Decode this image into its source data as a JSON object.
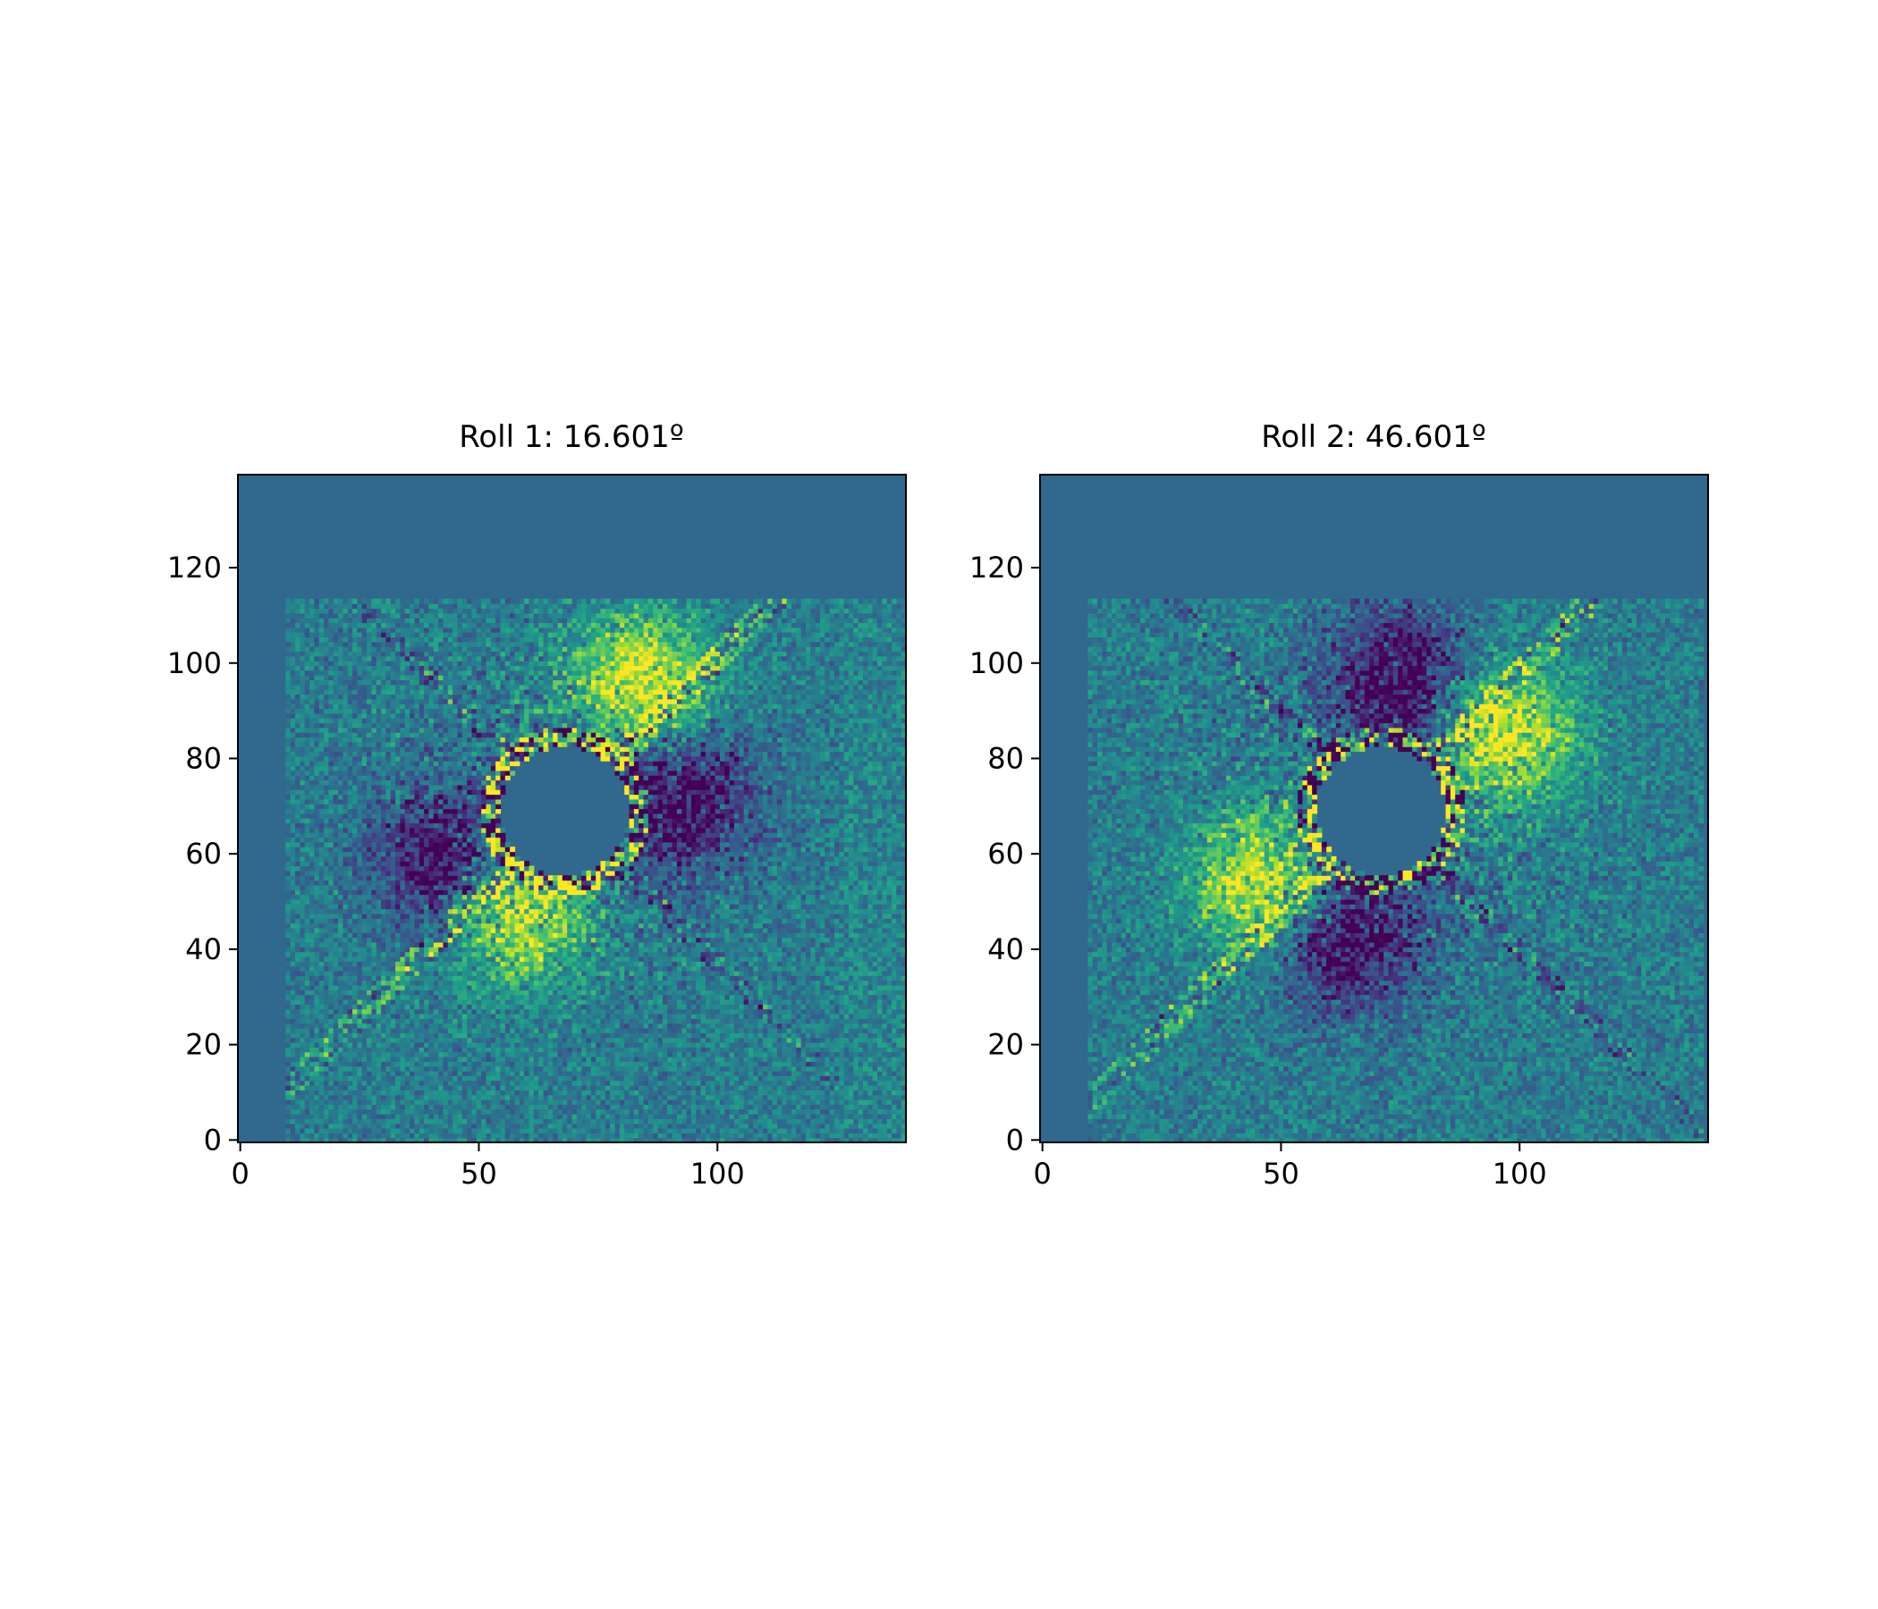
{
  "chart_data": [
    {
      "type": "heatmap",
      "title": "Roll 1: 16.601º",
      "xlabel": "",
      "ylabel": "",
      "xlim": [
        -0.5,
        139.5
      ],
      "ylim": [
        -0.5,
        139.5
      ],
      "xticks": [
        0,
        50,
        100
      ],
      "yticks": [
        0,
        20,
        40,
        60,
        80,
        100,
        120
      ],
      "colormap": "viridis",
      "masked_value_color": "#31688e",
      "mask_circle": {
        "center": [
          68,
          69
        ],
        "radius": 13.5
      },
      "valid_region": {
        "x": [
          10,
          126
        ],
        "y": [
          0,
          113
        ]
      },
      "extra_column_region": {
        "x": [
          126,
          139
        ]
      },
      "bright_lobes": [
        {
          "center": [
            84,
            96
          ],
          "angle_deg": 45
        },
        {
          "center": [
            58,
            48
          ],
          "angle_deg": 225
        }
      ],
      "dark_lobes": [
        {
          "center": [
            44,
            58
          ]
        },
        {
          "center": [
            92,
            72
          ]
        }
      ],
      "diagonal_streak_angle_deg": 45,
      "grid": false,
      "legend": "none"
    },
    {
      "type": "heatmap",
      "title": "Roll 2: 46.601º",
      "xlabel": "",
      "ylabel": "",
      "xlim": [
        -0.5,
        139.5
      ],
      "ylim": [
        -0.5,
        139.5
      ],
      "xticks": [
        0,
        50,
        100
      ],
      "yticks": [
        0,
        20,
        40,
        60,
        80,
        100,
        120
      ],
      "colormap": "viridis",
      "masked_value_color": "#31688e",
      "mask_circle": {
        "center": [
          71,
          69
        ],
        "radius": 13.5
      },
      "valid_region": {
        "x": [
          10,
          139
        ],
        "y": [
          0,
          113
        ]
      },
      "extra_column_region": {
        "x": [
          126,
          127
        ]
      },
      "bright_lobes": [
        {
          "center": [
            97,
            85
          ],
          "angle_deg": 20
        },
        {
          "center": [
            46,
            54
          ],
          "angle_deg": 200
        }
      ],
      "dark_lobes": [
        {
          "center": [
            75,
            96
          ]
        },
        {
          "center": [
            64,
            43
          ]
        }
      ],
      "diagonal_streak_angle_deg": 45,
      "grid": false,
      "legend": "none"
    }
  ]
}
